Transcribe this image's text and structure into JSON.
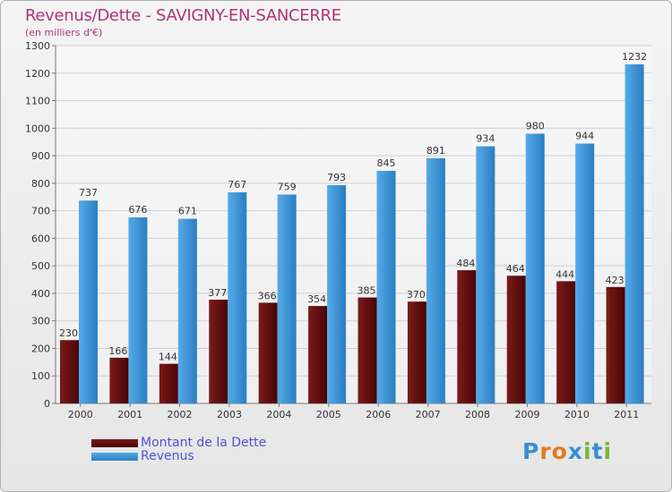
{
  "title": "Revenus/Dette - SAVIGNY-EN-SANCERRE",
  "subtitle": "(en milliers d'€)",
  "legend": {
    "debt_label": "Montant de la Dette",
    "revenue_label": "Revenus"
  },
  "logo": {
    "letters": [
      "P",
      "r",
      "o",
      "x",
      "i",
      "t",
      "i"
    ],
    "colors": [
      "#3a8fd0",
      "#e07a1f",
      "#e07a1f",
      "#3a8fd0",
      "#7ab63a",
      "#3a8fd0",
      "#7ab63a"
    ]
  },
  "colors": {
    "debt": "#7a1a1a",
    "debt_dark": "#4a0505",
    "revenue": "#55aae8",
    "revenue_dark": "#2b7fc2",
    "title": "#b0337a",
    "legend_text": "#5050d8"
  },
  "chart_data": {
    "type": "bar",
    "title": "Revenus/Dette - SAVIGNY-EN-SANCERRE",
    "subtitle": "(en milliers d'€)",
    "xlabel": "",
    "ylabel": "",
    "ylim": [
      0,
      1300
    ],
    "yticks": [
      0,
      100,
      200,
      300,
      400,
      500,
      600,
      700,
      800,
      900,
      1000,
      1100,
      1200,
      1300
    ],
    "grid": true,
    "legend_position": "bottom-left",
    "categories": [
      "2000",
      "2001",
      "2002",
      "2003",
      "2004",
      "2005",
      "2006",
      "2007",
      "2008",
      "2009",
      "2010",
      "2011"
    ],
    "series": [
      {
        "name": "Montant de la Dette",
        "values": [
          230,
          166,
          144,
          377,
          366,
          354,
          385,
          370,
          484,
          464,
          444,
          423
        ]
      },
      {
        "name": "Revenus",
        "values": [
          737,
          676,
          671,
          767,
          759,
          793,
          845,
          891,
          934,
          980,
          944,
          1232
        ]
      }
    ]
  }
}
